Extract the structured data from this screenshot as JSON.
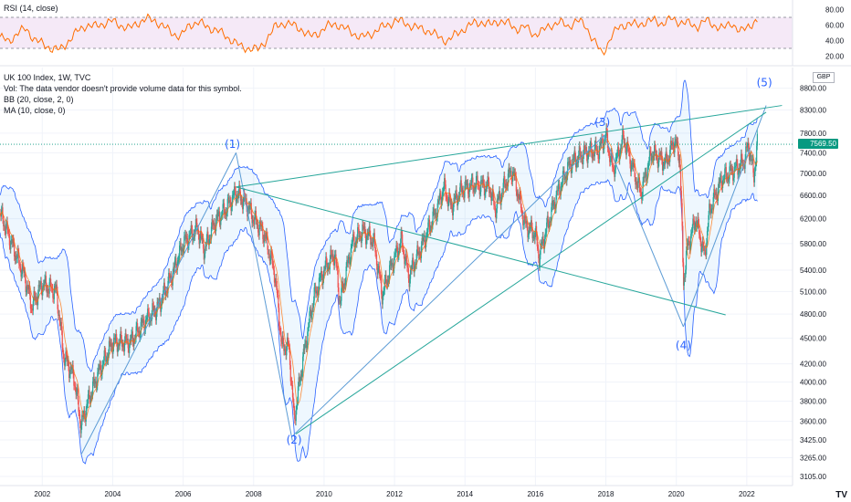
{
  "rsi_panel": {
    "legend": "RSI (14, close)",
    "ticks": [
      "80.00",
      "60.00",
      "40.00",
      "20.00"
    ]
  },
  "main_panel": {
    "legend_lines": [
      "UK 100 Index, 1W, TVC",
      "Vol: The data vendor doesn't provide volume data for this symbol.",
      "BB (20, close, 2, 0)",
      "MA (10, close, 0)"
    ],
    "currency": "GBP",
    "last_price": "7569.50"
  },
  "chart_data": {
    "type": "line",
    "title": "UK 100 Index, 1W, TVC",
    "y_scale": "log",
    "x_ticks": [
      "2002",
      "2004",
      "2006",
      "2008",
      "2010",
      "2012",
      "2014",
      "2016",
      "2018",
      "2020",
      "2022"
    ],
    "y_ticks": [
      3105,
      3265,
      3425,
      3600,
      3800,
      4000,
      4200,
      4500,
      4800,
      5100,
      5400,
      5800,
      6200,
      6600,
      7000,
      7400,
      7800,
      8300,
      8800
    ],
    "y_tick_labels": [
      "3105.00",
      "3265.00",
      "3425.00",
      "3600.00",
      "3800.00",
      "4000.00",
      "4200.00",
      "4500.00",
      "4800.00",
      "5100.00",
      "5400.00",
      "5800.00",
      "6200.00",
      "6600.00",
      "7000.00",
      "7400.00",
      "7800.00",
      "8300.00",
      "8800.00"
    ],
    "ylim": [
      3030,
      9300
    ],
    "xlim": [
      2000.8,
      2023.3
    ],
    "last_price": 7569.5,
    "series": [
      {
        "name": "UK 100 Index",
        "points": [
          [
            2000.8,
            6300
          ],
          [
            2001.2,
            5700
          ],
          [
            2001.5,
            5300
          ],
          [
            2001.7,
            4900
          ],
          [
            2002.0,
            5200
          ],
          [
            2002.4,
            5100
          ],
          [
            2002.6,
            4300
          ],
          [
            2002.9,
            4050
          ],
          [
            2003.1,
            3550
          ],
          [
            2003.3,
            3800
          ],
          [
            2003.6,
            4100
          ],
          [
            2004.0,
            4450
          ],
          [
            2004.5,
            4450
          ],
          [
            2004.9,
            4700
          ],
          [
            2005.3,
            4900
          ],
          [
            2005.7,
            5350
          ],
          [
            2006.0,
            5800
          ],
          [
            2006.4,
            6050
          ],
          [
            2006.6,
            5700
          ],
          [
            2006.9,
            6150
          ],
          [
            2007.2,
            6350
          ],
          [
            2007.5,
            6650
          ],
          [
            2007.8,
            6450
          ],
          [
            2008.0,
            6200
          ],
          [
            2008.3,
            5950
          ],
          [
            2008.6,
            5350
          ],
          [
            2008.8,
            4400
          ],
          [
            2009.0,
            4400
          ],
          [
            2009.15,
            3600
          ],
          [
            2009.4,
            4250
          ],
          [
            2009.7,
            5000
          ],
          [
            2010.0,
            5400
          ],
          [
            2010.3,
            5650
          ],
          [
            2010.45,
            4950
          ],
          [
            2010.8,
            5800
          ],
          [
            2011.1,
            6000
          ],
          [
            2011.4,
            5850
          ],
          [
            2011.65,
            5050
          ],
          [
            2011.9,
            5450
          ],
          [
            2012.2,
            5850
          ],
          [
            2012.4,
            5300
          ],
          [
            2012.8,
            5800
          ],
          [
            2013.2,
            6350
          ],
          [
            2013.4,
            6750
          ],
          [
            2013.6,
            6400
          ],
          [
            2013.9,
            6700
          ],
          [
            2014.3,
            6800
          ],
          [
            2014.7,
            6750
          ],
          [
            2014.85,
            6350
          ],
          [
            2015.2,
            6900
          ],
          [
            2015.35,
            7050
          ],
          [
            2015.7,
            6100
          ],
          [
            2016.0,
            5950
          ],
          [
            2016.1,
            5600
          ],
          [
            2016.4,
            6200
          ],
          [
            2016.6,
            6600
          ],
          [
            2017.0,
            7200
          ],
          [
            2017.4,
            7400
          ],
          [
            2017.8,
            7450
          ],
          [
            2018.0,
            7750
          ],
          [
            2018.2,
            7050
          ],
          [
            2018.5,
            7700
          ],
          [
            2018.9,
            6800
          ],
          [
            2019.0,
            6650
          ],
          [
            2019.3,
            7400
          ],
          [
            2019.7,
            7200
          ],
          [
            2019.95,
            7650
          ],
          [
            2020.1,
            7300
          ],
          [
            2020.2,
            5200
          ],
          [
            2020.3,
            5700
          ],
          [
            2020.55,
            6200
          ],
          [
            2020.8,
            5600
          ],
          [
            2020.95,
            6350
          ],
          [
            2021.3,
            6900
          ],
          [
            2021.6,
            7050
          ],
          [
            2021.9,
            7200
          ],
          [
            2022.05,
            7550
          ],
          [
            2022.2,
            6950
          ],
          [
            2022.3,
            7569
          ]
        ]
      }
    ],
    "annotations": [
      {
        "text": "(1)",
        "x": 2007.4,
        "y": 7500
      },
      {
        "text": "(2)",
        "x": 2009.15,
        "y": 3390
      },
      {
        "text": "(3)",
        "x": 2017.9,
        "y": 7950
      },
      {
        "text": "(4)",
        "x": 2020.2,
        "y": 4370
      },
      {
        "text": "(5)",
        "x": 2022.5,
        "y": 8850
      }
    ],
    "rsi": {
      "name": "RSI (14, close)",
      "ylim": [
        10,
        90
      ],
      "band": [
        30,
        70
      ],
      "values": [
        45,
        38,
        50,
        55,
        42,
        35,
        30,
        28,
        40,
        52,
        60,
        58,
        62,
        65,
        60,
        55,
        63,
        68,
        66,
        58,
        50,
        45,
        60,
        64,
        58,
        54,
        48,
        40,
        32,
        30,
        28,
        42,
        58,
        63,
        60,
        55,
        45,
        50,
        58,
        62,
        56,
        50,
        44,
        48,
        55,
        60,
        66,
        63,
        58,
        55,
        52,
        44,
        40,
        48,
        56,
        62,
        64,
        60,
        66,
        62,
        55,
        58,
        48,
        52,
        60,
        64,
        58,
        66,
        60,
        40,
        22,
        45,
        58,
        62,
        60,
        64,
        66,
        62,
        68,
        64,
        62,
        58,
        66,
        60,
        55,
        64,
        50,
        60,
        65
      ]
    }
  }
}
